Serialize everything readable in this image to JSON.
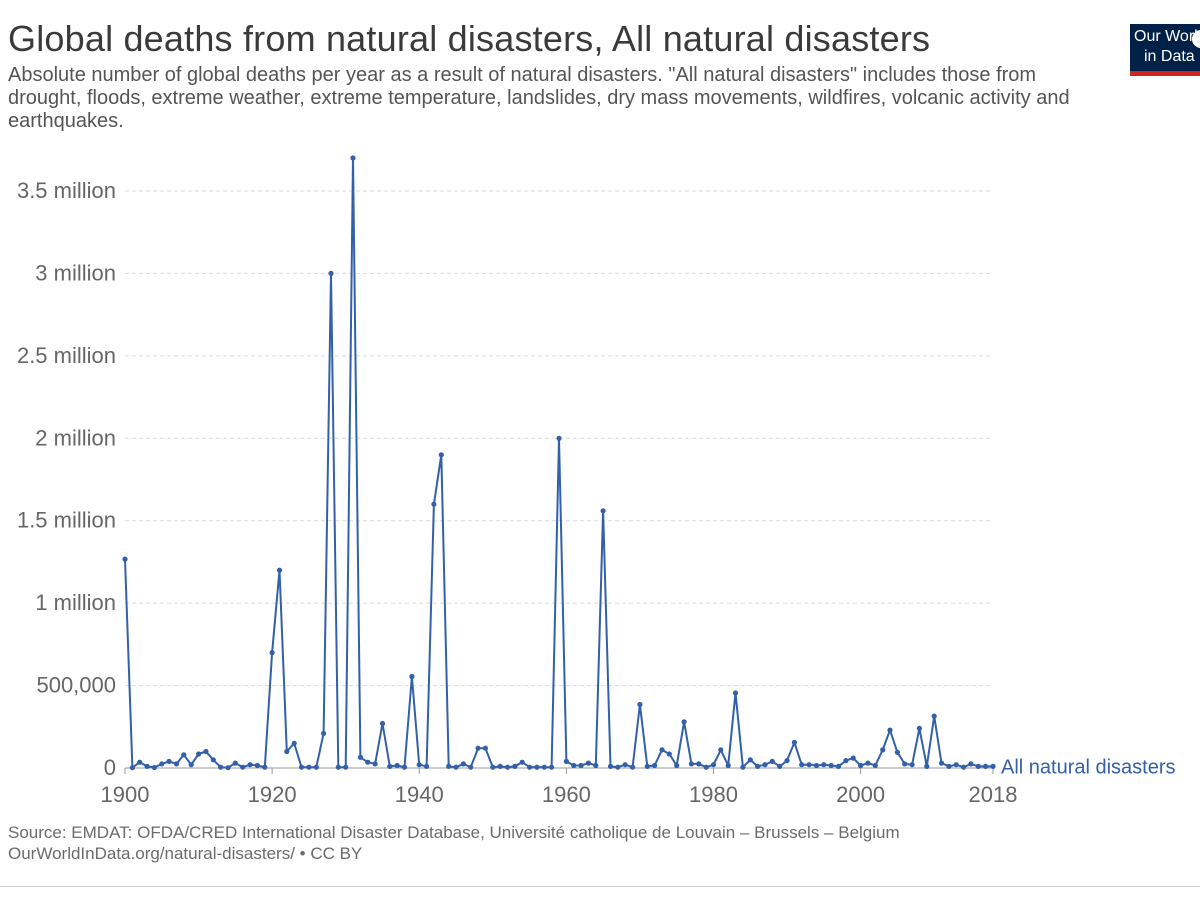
{
  "header": {
    "title": "Global deaths from natural disasters, All natural disasters",
    "subtitle": "Absolute number of global deaths per year as a result of natural disasters. \"All natural disasters\" includes those from drought, floods, extreme weather, extreme temperature, landslides, dry mass movements, wildfires, volcanic activity and earthquakes."
  },
  "logo": {
    "line1": "Our World",
    "line2": "in Data",
    "bg_color": "#002147",
    "accent_color": "#ce261e"
  },
  "footer": {
    "source": "Source: EMDAT: OFDA/CRED International Disaster Database, Université catholique de Louvain – Brussels – Belgium",
    "link": "OurWorldInData.org/natural-disasters/ • CC BY"
  },
  "chart_data": {
    "type": "line",
    "title": "Global deaths from natural disasters, All natural disasters",
    "ylim": [
      0,
      3700000
    ],
    "xlim": [
      1900,
      2018
    ],
    "grid": true,
    "line_color": "#3360a9",
    "y_ticks": [
      {
        "value": 0,
        "label": "0"
      },
      {
        "value": 500000,
        "label": "500,000"
      },
      {
        "value": 1000000,
        "label": "1 million"
      },
      {
        "value": 1500000,
        "label": "1.5 million"
      },
      {
        "value": 2000000,
        "label": "2 million"
      },
      {
        "value": 2500000,
        "label": "2.5 million"
      },
      {
        "value": 3000000,
        "label": "3 million"
      },
      {
        "value": 3500000,
        "label": "3.5 million"
      }
    ],
    "x_ticks": [
      {
        "value": 1900,
        "label": "1900"
      },
      {
        "value": 1920,
        "label": "1920"
      },
      {
        "value": 1940,
        "label": "1940"
      },
      {
        "value": 1960,
        "label": "1960"
      },
      {
        "value": 1980,
        "label": "1980"
      },
      {
        "value": 2000,
        "label": "2000"
      },
      {
        "value": 2018,
        "label": "2018"
      }
    ],
    "series": [
      {
        "name": "All natural disasters",
        "x": [
          1900,
          1901,
          1902,
          1903,
          1904,
          1905,
          1906,
          1907,
          1908,
          1909,
          1910,
          1911,
          1912,
          1913,
          1914,
          1915,
          1916,
          1917,
          1918,
          1919,
          1920,
          1921,
          1922,
          1923,
          1924,
          1925,
          1926,
          1927,
          1928,
          1929,
          1930,
          1931,
          1932,
          1933,
          1934,
          1935,
          1936,
          1937,
          1938,
          1939,
          1940,
          1941,
          1942,
          1943,
          1944,
          1945,
          1946,
          1947,
          1948,
          1949,
          1950,
          1951,
          1952,
          1953,
          1954,
          1955,
          1956,
          1957,
          1958,
          1959,
          1960,
          1961,
          1962,
          1963,
          1964,
          1965,
          1966,
          1967,
          1968,
          1969,
          1970,
          1971,
          1972,
          1973,
          1974,
          1975,
          1976,
          1977,
          1978,
          1979,
          1980,
          1981,
          1982,
          1983,
          1984,
          1985,
          1986,
          1987,
          1988,
          1989,
          1990,
          1991,
          1992,
          1993,
          1994,
          1995,
          1996,
          1997,
          1998,
          1999,
          2000,
          2001,
          2002,
          2003,
          2004,
          2005,
          2006,
          2007,
          2008,
          2009,
          2010,
          2011,
          2012,
          2013,
          2014,
          2015,
          2016,
          2017,
          2018
        ],
        "values": [
          1267000,
          2000,
          35000,
          10000,
          3000,
          25000,
          40000,
          25000,
          80000,
          20000,
          85000,
          100000,
          50000,
          5000,
          2000,
          30000,
          5000,
          20000,
          15000,
          5000,
          700000,
          1200000,
          100000,
          150000,
          5000,
          5000,
          5000,
          210000,
          3000000,
          5000,
          5000,
          3700000,
          65000,
          35000,
          25000,
          270000,
          10000,
          15000,
          5000,
          555000,
          20000,
          10000,
          1600000,
          1900000,
          10000,
          5000,
          25000,
          5000,
          120000,
          120000,
          5000,
          10000,
          5000,
          10000,
          35000,
          5000,
          5000,
          5000,
          5000,
          2000000,
          40000,
          15000,
          15000,
          30000,
          15000,
          1560000,
          10000,
          5000,
          20000,
          5000,
          385000,
          10000,
          15000,
          110000,
          85000,
          15000,
          280000,
          25000,
          25000,
          5000,
          20000,
          110000,
          15000,
          455000,
          5000,
          50000,
          10000,
          20000,
          40000,
          10000,
          45000,
          155000,
          20000,
          20000,
          15000,
          20000,
          15000,
          10000,
          45000,
          60000,
          15000,
          30000,
          15000,
          110000,
          230000,
          95000,
          25000,
          20000,
          240000,
          10000,
          315000,
          30000,
          10000,
          20000,
          5000,
          25000,
          10000,
          10000,
          10000
        ]
      }
    ]
  }
}
